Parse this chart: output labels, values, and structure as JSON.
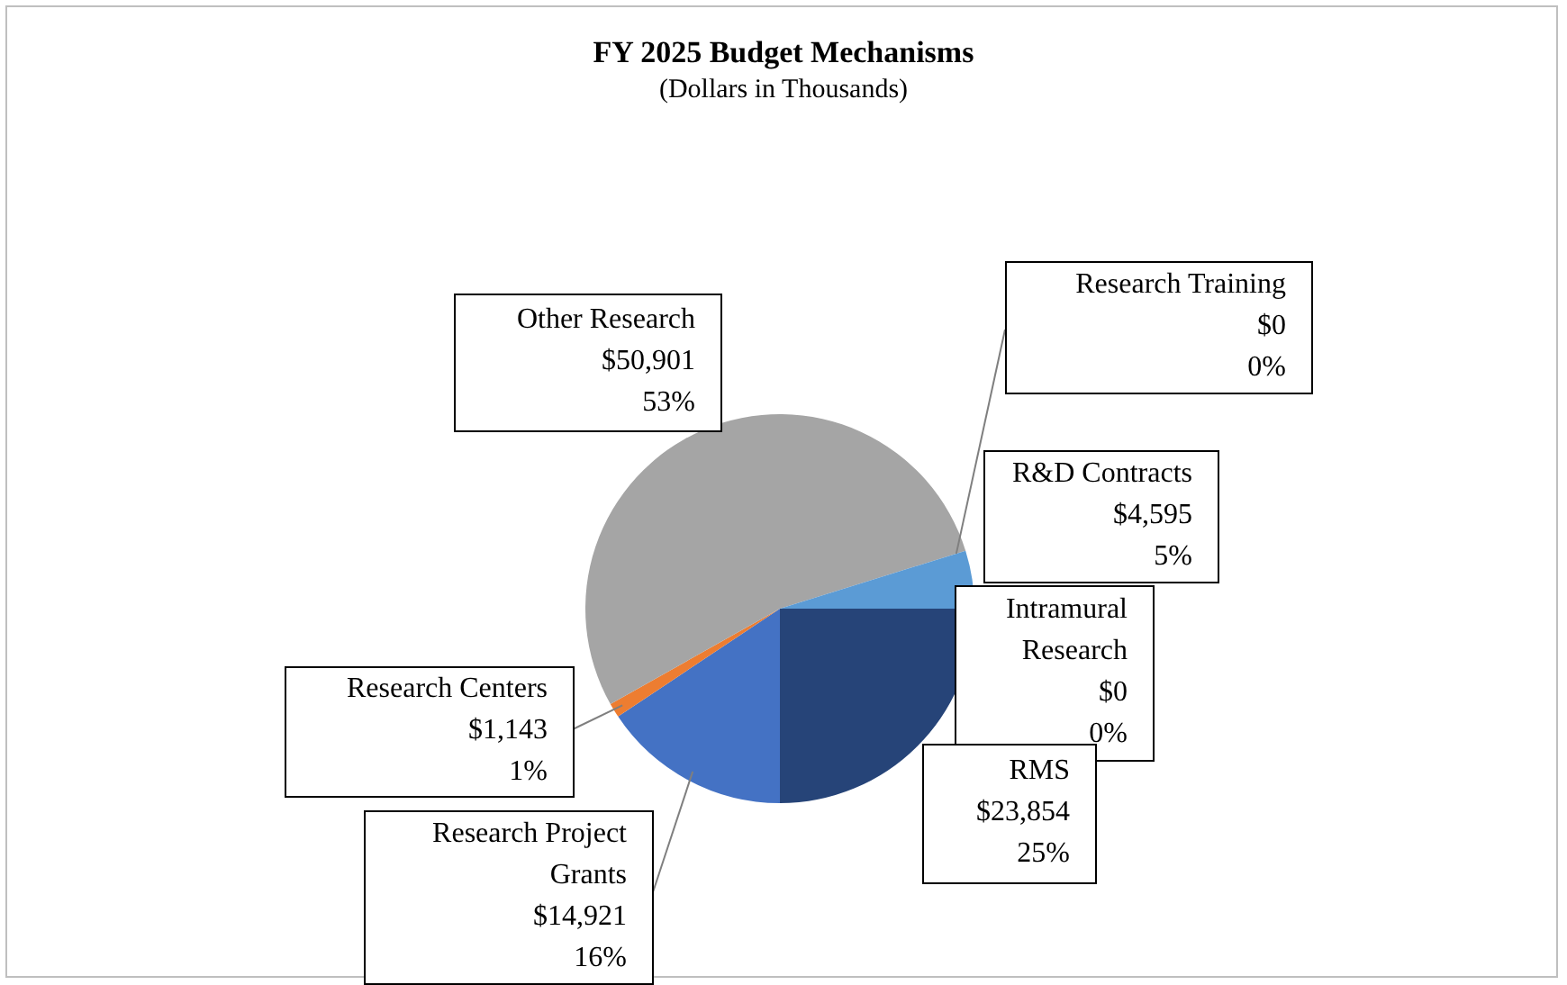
{
  "chart_data": {
    "type": "pie",
    "title": "FY 2025 Budget Mechanisms",
    "subtitle": "(Dollars in Thousands)",
    "categories": [
      "Research Project Grants",
      "Research Centers",
      "Other Research",
      "Research Training",
      "R&D Contracts",
      "Intramural Research",
      "RMS"
    ],
    "values": [
      14921,
      1143,
      50901,
      0,
      4595,
      0,
      23854
    ],
    "colors": [
      "#4472c4",
      "#ed7d31",
      "#a5a5a5",
      "#ffc000",
      "#5b9bd5",
      "#70ad47",
      "#264478"
    ],
    "value_labels": [
      "$14,921\n16%",
      "$1,143\n1%",
      "$50,901\n53%",
      "$0\n0%",
      "$4,595\n5%",
      "$0\n0%",
      "$23,854\n25%"
    ],
    "legend": false
  }
}
